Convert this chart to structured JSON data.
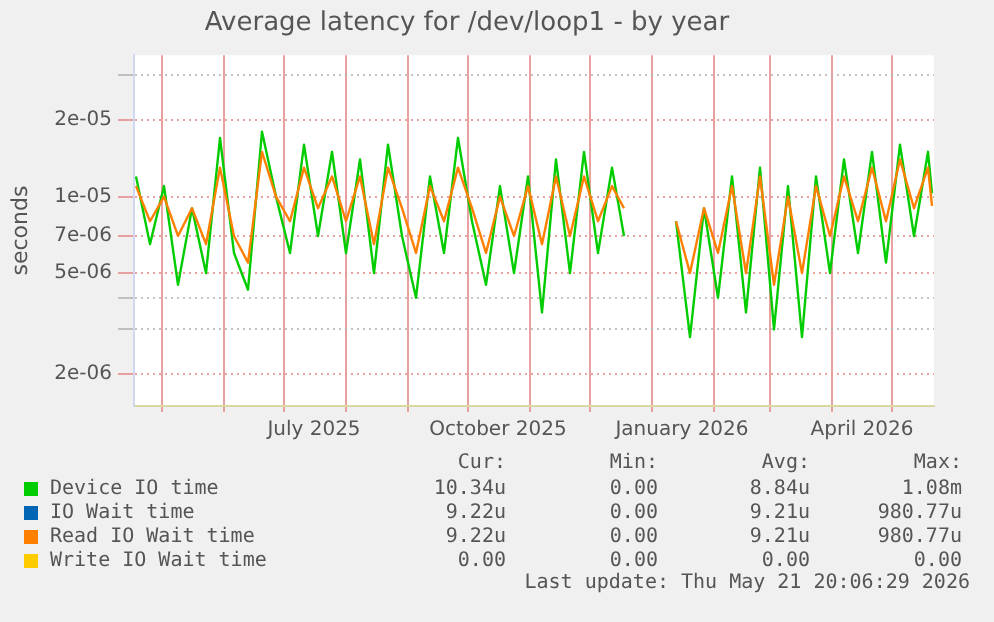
{
  "chart_data": {
    "type": "line",
    "title": "Average latency for /dev/loop1 - by year",
    "ylabel": "seconds",
    "x": [
      "2025-04-18",
      "2025-04-25",
      "2025-05-02",
      "2025-05-09",
      "2025-05-16",
      "2025-05-23",
      "2025-05-30",
      "2025-06-06",
      "2025-06-13",
      "2025-06-20",
      "2025-06-27",
      "2025-07-04",
      "2025-07-11",
      "2025-07-18",
      "2025-07-25",
      "2025-08-01",
      "2025-08-08",
      "2025-08-15",
      "2025-08-22",
      "2025-08-29",
      "2025-09-05",
      "2025-09-12",
      "2025-09-19",
      "2025-09-26",
      "2025-10-03",
      "2025-10-10",
      "2025-10-17",
      "2025-10-24",
      "2025-10-31",
      "2025-11-07",
      "2025-11-14",
      "2025-11-21",
      "2025-11-28",
      "2025-12-05",
      "2025-12-12",
      "2025-12-18",
      "2026-01-01",
      "2026-01-13",
      "2026-01-20",
      "2026-01-27",
      "2026-02-03",
      "2026-02-10",
      "2026-02-17",
      "2026-02-24",
      "2026-03-03",
      "2026-03-10",
      "2026-03-17",
      "2026-03-24",
      "2026-03-31",
      "2026-04-07",
      "2026-04-14",
      "2026-04-21",
      "2026-04-28",
      "2026-05-05",
      "2026-05-12",
      "2026-05-19",
      "2026-05-21"
    ],
    "series": [
      {
        "name": "Device IO time",
        "color": "#00cc00",
        "values": [
          1.2e-05,
          6.5e-06,
          1.1e-05,
          4.5e-06,
          9e-06,
          5e-06,
          1.7e-05,
          6e-06,
          4.3e-06,
          1.8e-05,
          1e-05,
          6e-06,
          1.6e-05,
          7e-06,
          1.5e-05,
          6e-06,
          1.4e-05,
          5e-06,
          1.6e-05,
          7e-06,
          4e-06,
          1.2e-05,
          6e-06,
          1.7e-05,
          8e-06,
          4.5e-06,
          1.1e-05,
          5e-06,
          1.2e-05,
          3.5e-06,
          1.4e-05,
          5e-06,
          1.5e-05,
          6e-06,
          1.3e-05,
          7e-06,
          null,
          8e-06,
          2.8e-06,
          9e-06,
          4e-06,
          1.2e-05,
          3.5e-06,
          1.3e-05,
          3e-06,
          1.1e-05,
          2.8e-06,
          1.2e-05,
          5e-06,
          1.4e-05,
          6e-06,
          1.5e-05,
          5.5e-06,
          1.6e-05,
          7e-06,
          1.5e-05,
          1.03e-05
        ]
      },
      {
        "name": "IO Wait time",
        "color": "#0066b3",
        "values": [
          null,
          null,
          null,
          null,
          null,
          null,
          null,
          null,
          null,
          null,
          null,
          null,
          null,
          null,
          null,
          null,
          null,
          null,
          null,
          null,
          null,
          null,
          null,
          null,
          null,
          null,
          null,
          null,
          null,
          null,
          null,
          null,
          null,
          null,
          null,
          null,
          null,
          null,
          null,
          null,
          null,
          null,
          null,
          null,
          null,
          null,
          null,
          null,
          null,
          null,
          null,
          null,
          null,
          null,
          null,
          null,
          null
        ]
      },
      {
        "name": "Read IO Wait time",
        "color": "#ff8000",
        "values": [
          1.1e-05,
          8e-06,
          1e-05,
          7e-06,
          9e-06,
          6.5e-06,
          1.3e-05,
          7e-06,
          5.5e-06,
          1.5e-05,
          1e-05,
          8e-06,
          1.3e-05,
          9e-06,
          1.2e-05,
          8e-06,
          1.2e-05,
          6.5e-06,
          1.3e-05,
          9e-06,
          6e-06,
          1.1e-05,
          8e-06,
          1.3e-05,
          9e-06,
          6e-06,
          1e-05,
          7e-06,
          1.1e-05,
          6.5e-06,
          1.2e-05,
          7e-06,
          1.2e-05,
          8e-06,
          1.1e-05,
          9e-06,
          null,
          8e-06,
          5e-06,
          9e-06,
          6e-06,
          1.1e-05,
          5e-06,
          1.2e-05,
          4.5e-06,
          1e-05,
          5e-06,
          1.1e-05,
          7e-06,
          1.2e-05,
          8e-06,
          1.3e-05,
          8e-06,
          1.4e-05,
          9e-06,
          1.3e-05,
          9.2e-06
        ]
      },
      {
        "name": "Write IO Wait time",
        "color": "#ffcc00",
        "values": [
          null,
          null,
          null,
          null,
          null,
          null,
          null,
          null,
          null,
          null,
          null,
          null,
          null,
          null,
          null,
          null,
          null,
          null,
          null,
          null,
          null,
          null,
          null,
          null,
          null,
          null,
          null,
          null,
          null,
          null,
          null,
          null,
          null,
          null,
          null,
          null,
          null,
          null,
          null,
          null,
          null,
          null,
          null,
          null,
          null,
          null,
          null,
          null,
          null,
          null,
          null,
          null,
          null,
          null,
          null,
          null,
          null
        ]
      }
    ],
    "xlim": [
      "2025-04-17",
      "2026-05-22"
    ],
    "xticks": [
      {
        "value": "2025-05-01",
        "label": null
      },
      {
        "value": "2025-06-01",
        "label": null
      },
      {
        "value": "2025-07-01",
        "label": null
      },
      {
        "value": "2025-07-16",
        "label": "July 2025"
      },
      {
        "value": "2025-08-01",
        "label": null
      },
      {
        "value": "2025-09-01",
        "label": null
      },
      {
        "value": "2025-10-01",
        "label": null
      },
      {
        "value": "2025-10-16",
        "label": "October 2025"
      },
      {
        "value": "2025-11-01",
        "label": null
      },
      {
        "value": "2025-12-01",
        "label": null
      },
      {
        "value": "2026-01-01",
        "label": null
      },
      {
        "value": "2026-01-16",
        "label": "January 2026"
      },
      {
        "value": "2026-02-01",
        "label": null
      },
      {
        "value": "2026-03-01",
        "label": null
      },
      {
        "value": "2026-04-01",
        "label": null
      },
      {
        "value": "2026-04-16",
        "label": "April 2026"
      },
      {
        "value": "2026-05-01",
        "label": null
      }
    ],
    "ylim": [
      1.5e-06,
      3.6e-05
    ],
    "yticks": [
      {
        "value": 2e-06,
        "label": "2e-06"
      },
      {
        "value": 3e-06,
        "label": null
      },
      {
        "value": 4e-06,
        "label": null
      },
      {
        "value": 5e-06,
        "label": "5e-06"
      },
      {
        "value": 7e-06,
        "label": "7e-06"
      },
      {
        "value": 1e-05,
        "label": "1e-05"
      },
      {
        "value": 2e-05,
        "label": "2e-05"
      },
      {
        "value": 3e-05,
        "label": null
      }
    ],
    "log": "y",
    "grid": true,
    "legend": "bottom",
    "marker": "none",
    "line_style": "solid",
    "annotations": [
      "Cur:",
      "Min:",
      "Avg:",
      "Max:",
      "10.34u",
      "0.00",
      "8.84u",
      "1.08m",
      "9.22u",
      "0.00",
      "9.21u",
      "980.77u",
      "9.22u",
      "0.00",
      "9.21u",
      "980.77u",
      "0.00",
      "0.00",
      "0.00",
      "0.00",
      "Last update: Thu May 21 20:06:29 2026"
    ]
  }
}
